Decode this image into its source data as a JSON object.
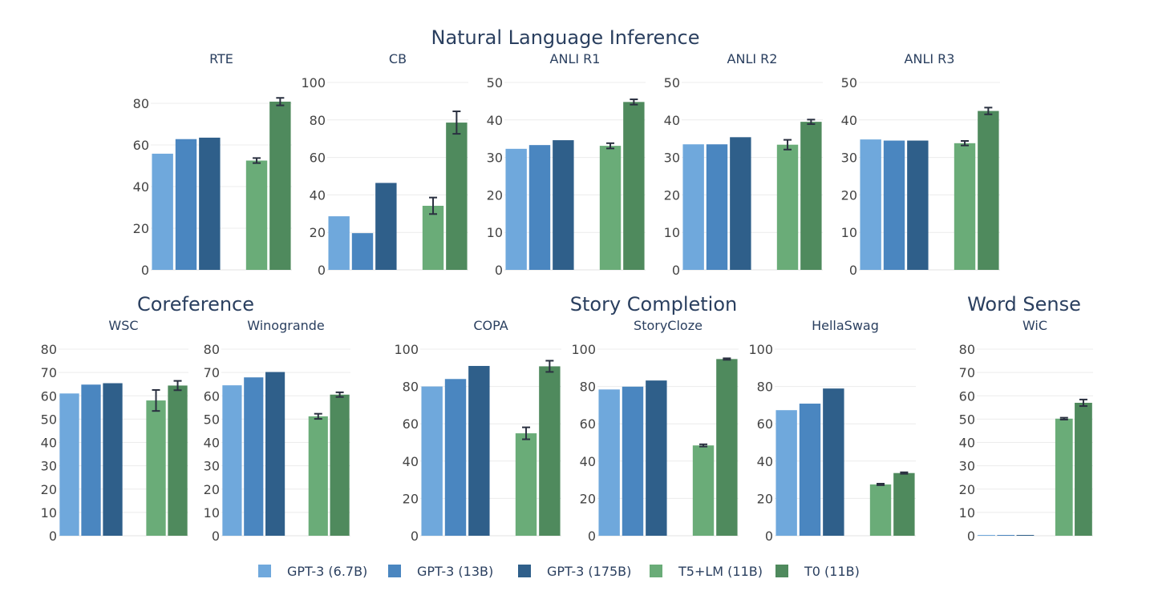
{
  "chart_data": {
    "type": "bar",
    "legend_position": "bottom",
    "legend": [
      {
        "name": "GPT-3 (6.7B)",
        "color": "#6fa8dc"
      },
      {
        "name": "GPT-3 (13B)",
        "color": "#4a86c0"
      },
      {
        "name": "GPT-3 (175B)",
        "color": "#2f5f8a"
      },
      {
        "name": "T5+LM (11B)",
        "color": "#6aac78"
      },
      {
        "name": "T0 (11B)",
        "color": "#4f8a5d"
      }
    ],
    "groups": [
      {
        "title": "Natural Language Inference"
      },
      {
        "title": "Coreference"
      },
      {
        "title": "Story Completion"
      },
      {
        "title": "Word Sense"
      }
    ],
    "panels": [
      {
        "title": "RTE",
        "group": 0,
        "ylim": [
          0,
          90
        ],
        "yticks": [
          0,
          20,
          40,
          60,
          80
        ],
        "values": [
          55.8,
          62.8,
          63.5,
          null,
          52.5,
          80.8
        ],
        "errors": [
          0,
          0,
          0,
          null,
          1.2,
          1.8
        ]
      },
      {
        "title": "CB",
        "group": 0,
        "ylim": [
          0,
          100
        ],
        "yticks": [
          0,
          20,
          40,
          60,
          80,
          100
        ],
        "values": [
          28.6,
          19.6,
          46.4,
          null,
          34.2,
          78.6
        ],
        "errors": [
          0,
          0,
          0,
          null,
          4.4,
          6.0
        ]
      },
      {
        "title": "ANLI R1",
        "group": 0,
        "ylim": [
          0,
          50
        ],
        "yticks": [
          0,
          10,
          20,
          30,
          40,
          50
        ],
        "values": [
          32.3,
          33.3,
          34.6,
          null,
          33.1,
          44.8
        ],
        "errors": [
          0,
          0,
          0,
          null,
          0.7,
          0.7
        ]
      },
      {
        "title": "ANLI R2",
        "group": 0,
        "ylim": [
          0,
          50
        ],
        "yticks": [
          0,
          10,
          20,
          30,
          40,
          50
        ],
        "values": [
          33.5,
          33.5,
          35.4,
          null,
          33.4,
          39.5
        ],
        "errors": [
          0,
          0,
          0,
          null,
          1.3,
          0.6
        ]
      },
      {
        "title": "ANLI R3",
        "group": 0,
        "ylim": [
          0,
          50
        ],
        "yticks": [
          0,
          10,
          20,
          30,
          40,
          50
        ],
        "values": [
          34.8,
          34.5,
          34.5,
          null,
          33.8,
          42.4
        ],
        "errors": [
          0,
          0,
          0,
          null,
          0.6,
          0.9
        ]
      },
      {
        "title": "WSC",
        "group": 1,
        "ylim": [
          0,
          80
        ],
        "yticks": [
          0,
          10,
          20,
          30,
          40,
          50,
          60,
          70,
          80
        ],
        "values": [
          61.0,
          64.8,
          65.4,
          null,
          58.0,
          64.4
        ],
        "errors": [
          0,
          0,
          0,
          null,
          4.5,
          2.0
        ]
      },
      {
        "title": "Winogrande",
        "group": 1,
        "ylim": [
          0,
          80
        ],
        "yticks": [
          0,
          10,
          20,
          30,
          40,
          50,
          60,
          70,
          80
        ],
        "values": [
          64.5,
          67.9,
          70.2,
          null,
          51.2,
          60.5
        ],
        "errors": [
          0,
          0,
          0,
          null,
          1.1,
          1.0
        ]
      },
      {
        "title": "COPA",
        "group": 2,
        "ylim": [
          0,
          100
        ],
        "yticks": [
          0,
          20,
          40,
          60,
          80,
          100
        ],
        "values": [
          80.0,
          84.0,
          91.0,
          null,
          54.9,
          90.8
        ],
        "errors": [
          0,
          0,
          0,
          null,
          3.2,
          3.0
        ]
      },
      {
        "title": "StoryCloze",
        "group": 2,
        "ylim": [
          0,
          100
        ],
        "yticks": [
          0,
          20,
          40,
          60,
          80,
          100
        ],
        "values": [
          78.4,
          79.9,
          83.2,
          null,
          48.4,
          94.7
        ],
        "errors": [
          0,
          0,
          0,
          null,
          0.6,
          0.4
        ]
      },
      {
        "title": "HellaSwag",
        "group": 2,
        "ylim": [
          0,
          100
        ],
        "yticks": [
          0,
          20,
          40,
          60,
          80,
          100
        ],
        "values": [
          67.3,
          70.8,
          78.9,
          null,
          27.5,
          33.6
        ],
        "errors": [
          0,
          0,
          0,
          null,
          0.4,
          0.4
        ]
      },
      {
        "title": "WiC",
        "group": 3,
        "ylim": [
          0,
          80
        ],
        "yticks": [
          0,
          10,
          20,
          30,
          40,
          50,
          60,
          70,
          80
        ],
        "values": [
          0.3,
          0.3,
          0.3,
          null,
          50.2,
          57.0
        ],
        "errors": [
          0,
          0,
          0,
          null,
          0.4,
          1.4
        ]
      }
    ]
  }
}
